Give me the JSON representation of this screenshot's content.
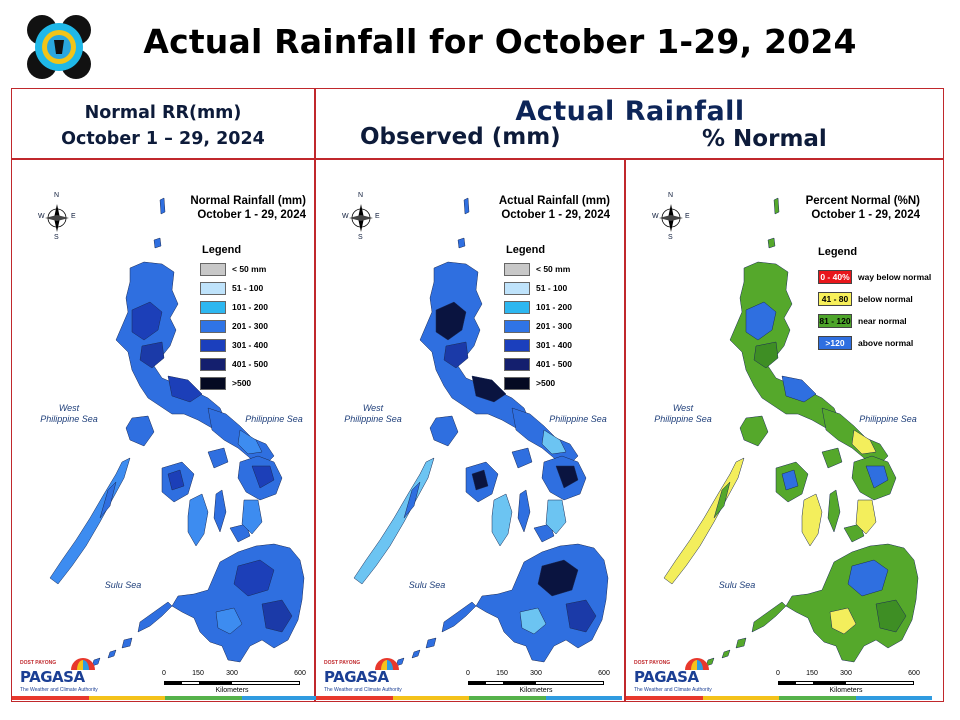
{
  "header": {
    "title": "Actual Rainfall for October 1-29, 2024",
    "left_heading_line1": "Normal RR(mm)",
    "left_heading_line2": "October 1 – 29, 2024",
    "center_heading": "Actual Rainfall",
    "observed_label": "Observed (mm)",
    "percent_label": "% Normal"
  },
  "compass": {
    "n": "N",
    "s": "S",
    "e": "E",
    "w": "W"
  },
  "seas": {
    "west_line1": "West",
    "west_line2": "Philippine Sea",
    "east": "Philippine Sea",
    "sulu": "Sulu Sea"
  },
  "scale": {
    "t0": "0",
    "t1": "150",
    "t2": "300",
    "t3": "600",
    "unit": "Kilometers"
  },
  "branding": {
    "name": "PAGASA",
    "project": "DOST PAYONG",
    "tagline": "The Weather and Climate Authority"
  },
  "panels": [
    {
      "title_line1": "Normal Rainfall (mm)",
      "title_line2": "October 1 - 29, 2024",
      "legend_title": "Legend",
      "legend": [
        {
          "label": "< 50 mm",
          "color": "#c8c8c8"
        },
        {
          "label": "51 - 100",
          "color": "#bfe3fb"
        },
        {
          "label": "101 - 200",
          "color": "#2db7f0"
        },
        {
          "label": "201 - 300",
          "color": "#2f74e6"
        },
        {
          "label": "301 - 400",
          "color": "#1b3fbd"
        },
        {
          "label": "401 - 500",
          "color": "#141f6e"
        },
        {
          "label": ">500",
          "color": "#050a22"
        }
      ],
      "map_colors": {
        "base": "#2f6fe0",
        "accent1": "#1c3fb8",
        "accent2": "#3d8cf0",
        "accent3": "#1b3aa8"
      }
    },
    {
      "title_line1": "Actual Rainfall (mm)",
      "title_line2": "October 1 - 29, 2024",
      "legend_title": "Legend",
      "legend": [
        {
          "label": "< 50 mm",
          "color": "#c8c8c8"
        },
        {
          "label": "51 - 100",
          "color": "#bfe3fb"
        },
        {
          "label": "101 - 200",
          "color": "#2db7f0"
        },
        {
          "label": "201 - 300",
          "color": "#2f74e6"
        },
        {
          "label": "301 - 400",
          "color": "#1b3fbd"
        },
        {
          "label": "401 - 500",
          "color": "#141f6e"
        },
        {
          "label": ">500",
          "color": "#050a22"
        }
      ],
      "map_colors": {
        "base": "#2f6fe0",
        "accent1": "#0a1440",
        "accent2": "#6cc4f2",
        "accent3": "#1b3aa8"
      }
    },
    {
      "title_line1": "Percent Normal (%N)",
      "title_line2": "October 1 - 29, 2024",
      "legend_title": "Legend",
      "legend": [
        {
          "range": "0 - 40%",
          "label": "way below normal",
          "color": "#e8161b",
          "text_color": "#ffffff"
        },
        {
          "range": "41 - 80",
          "label": "below normal",
          "color": "#f7f05a",
          "text_color": "#000000"
        },
        {
          "range": "81 - 120",
          "label": "near normal",
          "color": "#4ea52a",
          "text_color": "#000000"
        },
        {
          "range": ">120",
          "label": "above normal",
          "color": "#2f6fe0",
          "text_color": "#ffffff"
        }
      ],
      "map_colors": {
        "base": "#55a82b",
        "accent1": "#2f6fe0",
        "accent2": "#f3ee5c",
        "accent3": "#3e8e24"
      }
    }
  ]
}
